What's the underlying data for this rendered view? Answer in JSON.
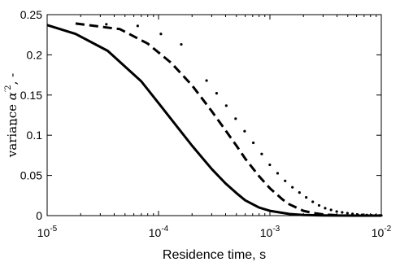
{
  "chart_data": {
    "type": "line",
    "xscale": "log",
    "xlabel": "Residence time, s",
    "ylabel": {
      "prefix": "variance ",
      "symbol": "α",
      "accent": "‾",
      "prime": "′",
      "power": "2",
      "suffix": ", -"
    },
    "xlim": [
      1e-05,
      0.01
    ],
    "ylim": [
      0,
      0.25
    ],
    "xticks": [
      1e-05,
      0.0001,
      0.001,
      0.01
    ],
    "xtick_labels": [
      {
        "base": "10",
        "exp": "-5"
      },
      {
        "base": "10",
        "exp": "-4"
      },
      {
        "base": "10",
        "exp": "-3"
      },
      {
        "base": "10",
        "exp": "-2"
      }
    ],
    "yticks": [
      0,
      0.05,
      0.1,
      0.15,
      0.2,
      0.25
    ],
    "ytick_labels": [
      "0",
      "0.05",
      "0.1",
      "0.15",
      "0.2",
      "0.25"
    ],
    "grid": false,
    "box": true,
    "series": [
      {
        "style": "solid",
        "color": "#000000",
        "x": [
          1e-05,
          1.8e-05,
          3.5e-05,
          7e-05,
          0.0001,
          0.00015,
          0.0002,
          0.0003,
          0.0004,
          0.0005,
          0.0006,
          0.0008,
          0.001,
          0.0015,
          0.002,
          0.003,
          0.004,
          0.006,
          0.01
        ],
        "y": [
          0.237,
          0.226,
          0.205,
          0.167,
          0.14,
          0.109,
          0.087,
          0.058,
          0.04,
          0.028,
          0.019,
          0.01,
          0.006,
          0.002,
          0.0008,
          0.0002,
          0.0001,
          0,
          0
        ]
      },
      {
        "style": "dashed",
        "color": "#000000",
        "x": [
          1.8e-05,
          4.5e-05,
          8e-05,
          0.00013,
          0.0002,
          0.0003,
          0.0004,
          0.0005,
          0.0006,
          0.0008,
          0.001,
          0.0013,
          0.0015,
          0.002,
          0.0025,
          0.003,
          0.004
        ],
        "y": [
          0.239,
          0.232,
          0.214,
          0.19,
          0.162,
          0.13,
          0.106,
          0.087,
          0.071,
          0.049,
          0.034,
          0.02,
          0.014,
          0.006,
          0.003,
          0.0015,
          0.0005
        ]
      },
      {
        "style": "dotted",
        "color": "#000000",
        "x": [
          3.4e-05,
          6.5e-05,
          0.000105,
          0.00016,
          0.00027,
          0.0004,
          0.0006,
          0.0008,
          0.001,
          0.0013,
          0.0016,
          0.002,
          0.0025,
          0.003,
          0.004,
          0.005,
          0.006,
          0.007,
          0.008,
          0.009,
          0.01
        ],
        "y": [
          0.238,
          0.236,
          0.226,
          0.213,
          0.168,
          0.138,
          0.104,
          0.081,
          0.063,
          0.046,
          0.035,
          0.025,
          0.016,
          0.01,
          0.005,
          0.003,
          0.0015,
          0.0009,
          0.0005,
          0.0003,
          0.0002
        ]
      }
    ]
  }
}
